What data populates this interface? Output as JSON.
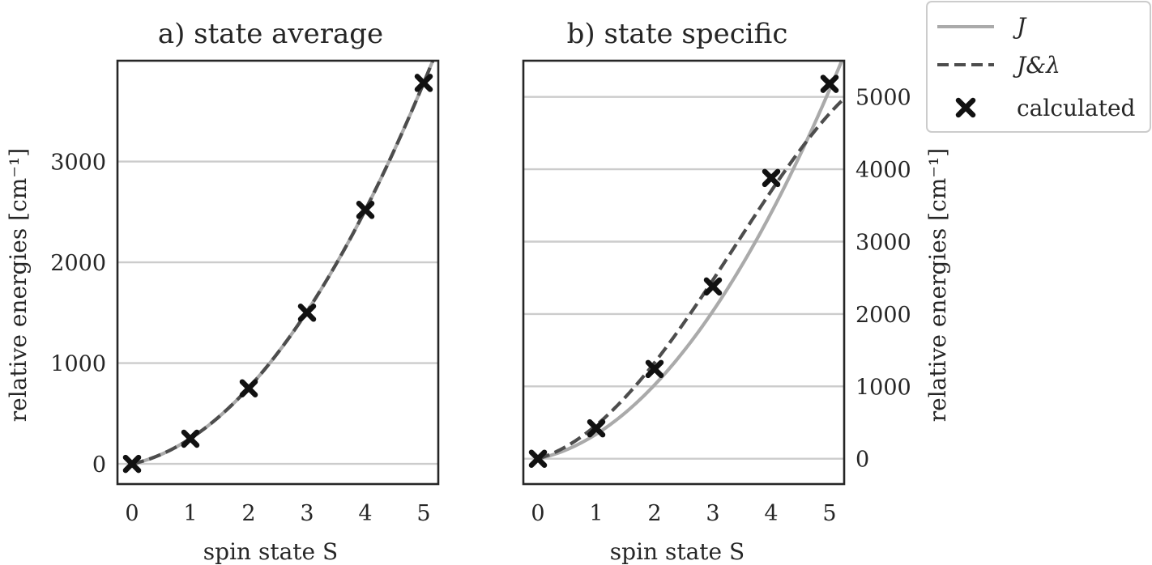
{
  "legend": {
    "entries": [
      {
        "key": "J",
        "label": "J",
        "style": "solid",
        "color": "#aaaaaa"
      },
      {
        "key": "J_lambda",
        "label": "J&λ",
        "style": "dashed",
        "color": "#4d4d4d"
      },
      {
        "key": "calculated",
        "label": "calculated",
        "style": "marker-x",
        "color": "#111111"
      }
    ],
    "placement": "outside-top-right"
  },
  "chart_data": [
    {
      "type": "line",
      "title": "a) state average",
      "xlabel": "spin state S",
      "ylabel": "relative energies [cm⁻¹]",
      "xlim": [
        -0.25,
        5.25
      ],
      "ylim": [
        -200,
        4000
      ],
      "xticks": [
        0,
        1,
        2,
        3,
        4,
        5
      ],
      "yticks": [
        0,
        1000,
        2000,
        3000
      ],
      "ytick_labels": [
        "0",
        "1000",
        "2000",
        "3000"
      ],
      "y_axis_side": "left",
      "grid": "horizontal",
      "series": [
        {
          "key": "J",
          "style": "solid",
          "color": "#aaaaaa",
          "J": 126,
          "lambda": 0
        },
        {
          "key": "J_lambda",
          "style": "dashed",
          "color": "#4d4d4d",
          "J": 126,
          "lambda": 0
        },
        {
          "key": "calculated",
          "style": "marker-x",
          "color": "#111111",
          "x": [
            0,
            1,
            2,
            3,
            4,
            5
          ],
          "y": [
            0,
            250,
            750,
            1500,
            2520,
            3780
          ]
        }
      ]
    },
    {
      "type": "line",
      "title": "b) state specific",
      "xlabel": "spin state S",
      "ylabel": "relative energies [cm⁻¹]",
      "xlim": [
        -0.25,
        5.25
      ],
      "ylim": [
        -350,
        5500
      ],
      "xticks": [
        0,
        1,
        2,
        3,
        4,
        5
      ],
      "yticks": [
        0,
        1000,
        2000,
        3000,
        4000,
        5000
      ],
      "ytick_labels": [
        "0",
        "1000",
        "2000",
        "3000",
        "4000",
        "5000"
      ],
      "y_axis_side": "right",
      "grid": "horizontal",
      "series": [
        {
          "key": "J",
          "style": "solid",
          "color": "#aaaaaa",
          "J": 170,
          "lambda": 0
        },
        {
          "key": "J_lambda",
          "style": "dashed",
          "color": "#4d4d4d",
          "J": 237,
          "lambda": -2.6
        },
        {
          "key": "calculated",
          "style": "marker-x",
          "color": "#111111",
          "x": [
            0,
            1,
            2,
            3,
            4,
            5
          ],
          "y": [
            0,
            420,
            1240,
            2380,
            3880,
            5180
          ]
        }
      ]
    }
  ]
}
